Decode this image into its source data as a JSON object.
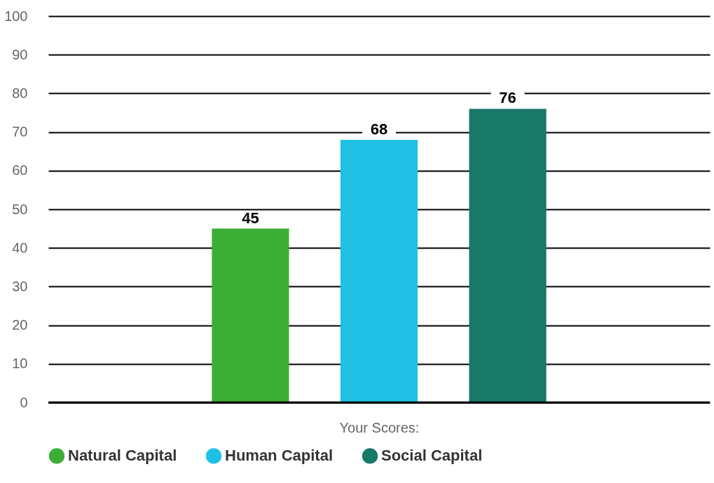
{
  "chart_data": {
    "type": "bar",
    "categories": [
      null
    ],
    "xlabel": "Your Scores:",
    "series": [
      {
        "name": "Natural Capital",
        "color": "#3dae35",
        "values": [
          45
        ]
      },
      {
        "name": "Human Capital",
        "color": "#1fc0e4",
        "values": [
          68
        ]
      },
      {
        "name": "Social Capital",
        "color": "#177967",
        "values": [
          76
        ]
      }
    ],
    "ylim": [
      0,
      100
    ],
    "yticks": [
      0,
      10,
      20,
      30,
      40,
      50,
      60,
      70,
      80,
      90,
      100
    ],
    "grid": "y",
    "legend": "bottom",
    "data_labels": true
  }
}
